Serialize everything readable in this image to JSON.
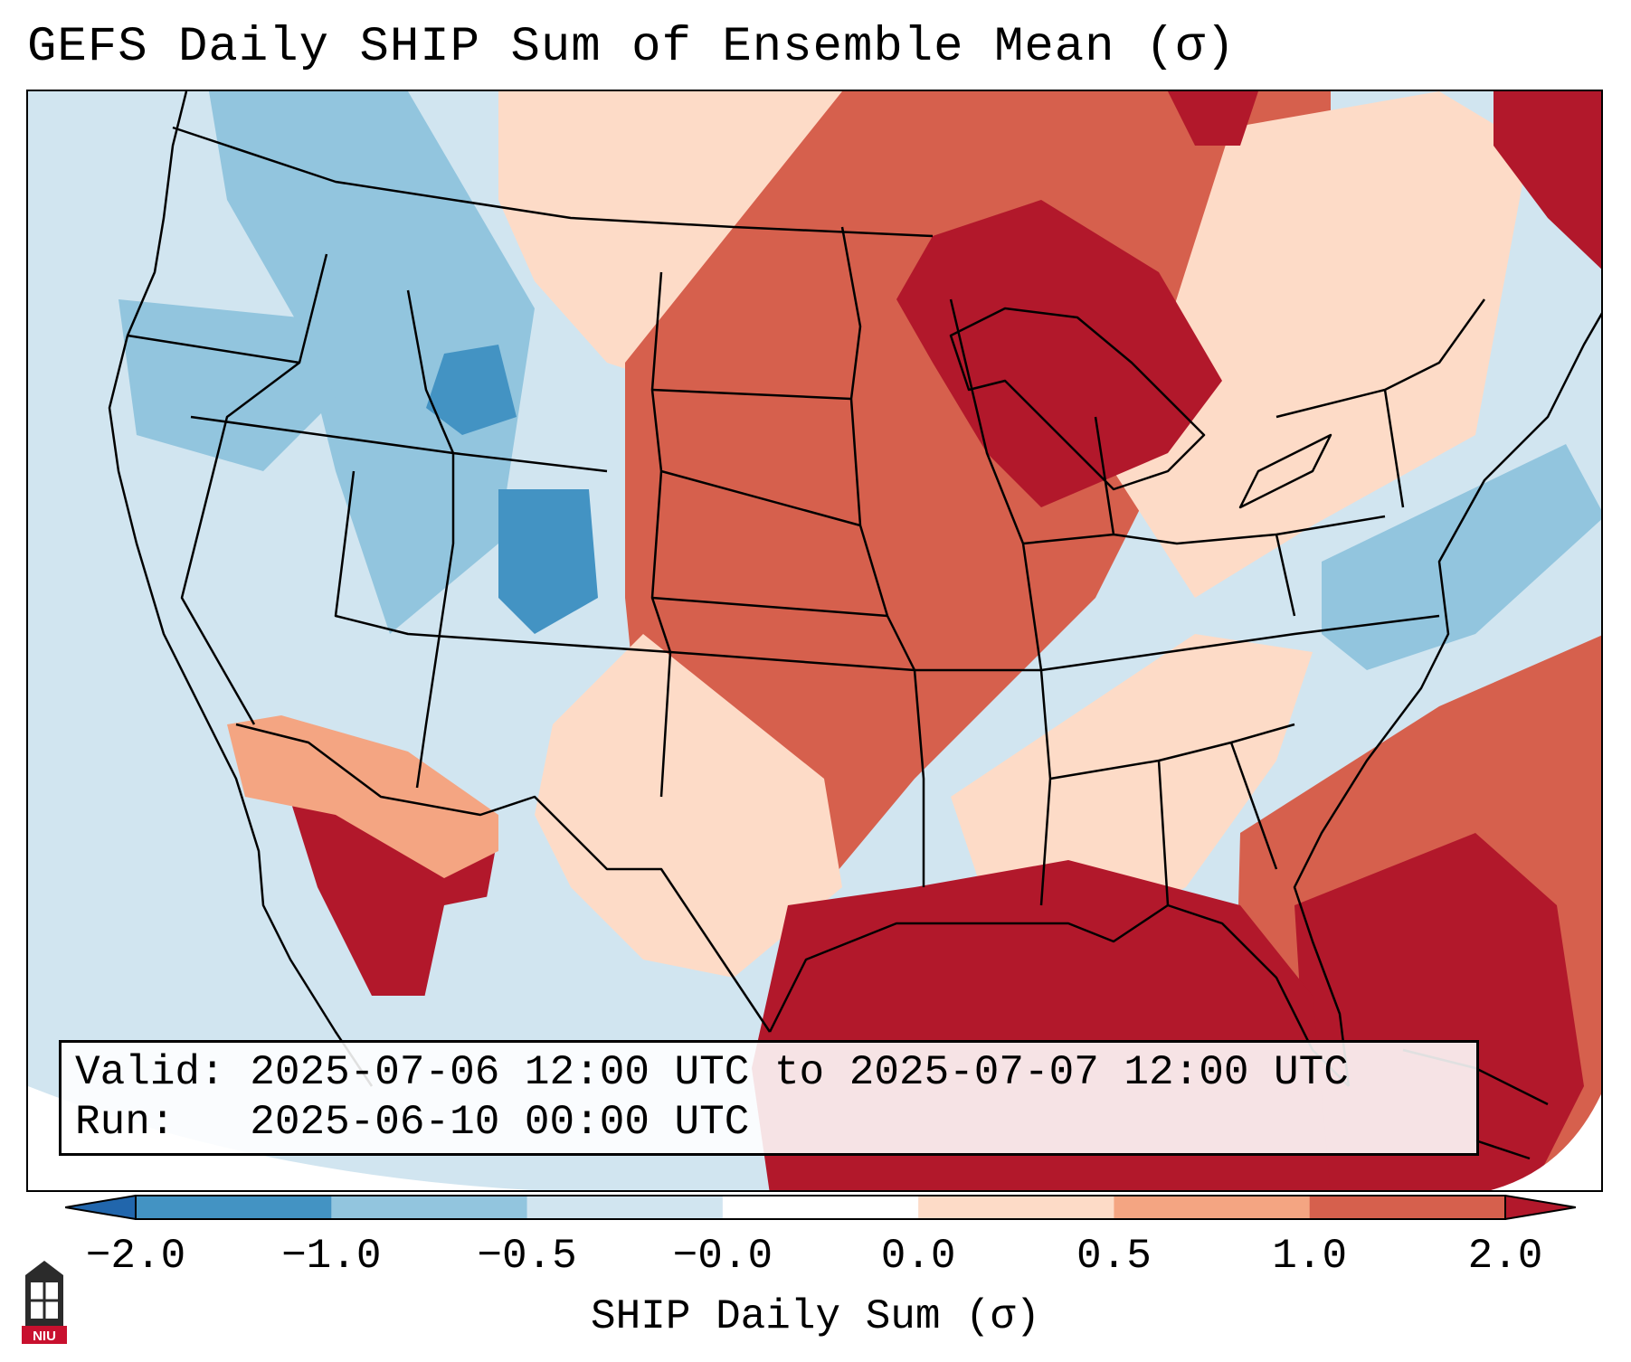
{
  "title": "GEFS Daily SHIP Sum of Ensemble Mean (σ)",
  "info": {
    "valid_label": "Valid:",
    "valid_value": "2025-07-06 12:00 UTC to 2025-07-07 12:00 UTC",
    "run_label": "Run:",
    "run_value": "2025-06-10 00:00 UTC"
  },
  "colorbar": {
    "label": "SHIP Daily Sum (σ)",
    "ticks": [
      "−2.0",
      "−1.0",
      "−0.5",
      "−0.0",
      "0.0",
      "0.5",
      "1.0",
      "2.0"
    ],
    "bins": [
      {
        "range": "-2.0 to -1.0",
        "color": "#4393c3"
      },
      {
        "range": "-1.0 to -0.5",
        "color": "#92c5de"
      },
      {
        "range": "-0.5 to -0.0",
        "color": "#d1e5f0"
      },
      {
        "range": "-0.0 to 0.0",
        "color": "#ffffff"
      },
      {
        "range": "0.0 to 0.5",
        "color": "#fddbc7"
      },
      {
        "range": "0.5 to 1.0",
        "color": "#f4a582"
      },
      {
        "range": "1.0 to 2.0",
        "color": "#d6604d"
      }
    ],
    "under_color": "#2166ac",
    "over_color": "#b2182b"
  },
  "colors": {
    "strong_positive": "#b2182b",
    "positive": "#d6604d",
    "weak_positive": "#f4a582",
    "slight_positive": "#fddbc7",
    "slight_negative": "#d1e5f0",
    "weak_negative": "#92c5de",
    "negative": "#4393c3"
  },
  "logo_text": "NIU"
}
